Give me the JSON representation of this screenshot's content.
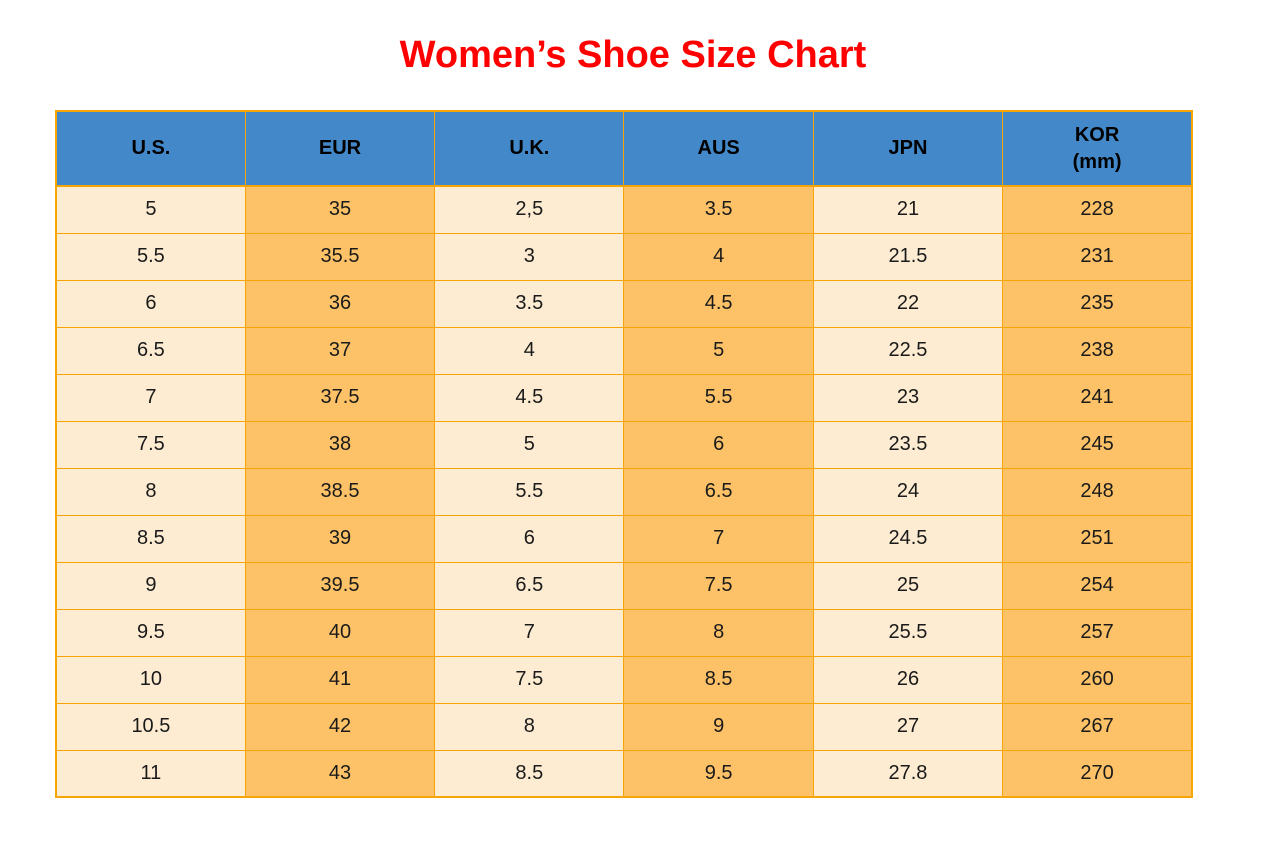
{
  "title": "Women’s Shoe Size Chart",
  "chart_data": {
    "type": "table",
    "title": "Women’s Shoe Size Chart",
    "columns": [
      {
        "key": "us",
        "label": "U.S."
      },
      {
        "key": "eur",
        "label": "EUR"
      },
      {
        "key": "uk",
        "label": "U.K."
      },
      {
        "key": "aus",
        "label": "AUS"
      },
      {
        "key": "jpn",
        "label": "JPN"
      },
      {
        "key": "kor",
        "label": "KOR",
        "sublabel": "(mm)"
      }
    ],
    "rows": [
      [
        "5",
        "35",
        "2,5",
        "3.5",
        "21",
        "228"
      ],
      [
        "5.5",
        "35.5",
        "3",
        "4",
        "21.5",
        "231"
      ],
      [
        "6",
        "36",
        "3.5",
        "4.5",
        "22",
        "235"
      ],
      [
        "6.5",
        "37",
        "4",
        "5",
        "22.5",
        "238"
      ],
      [
        "7",
        "37.5",
        "4.5",
        "5.5",
        "23",
        "241"
      ],
      [
        "7.5",
        "38",
        "5",
        "6",
        "23.5",
        "245"
      ],
      [
        "8",
        "38.5",
        "5.5",
        "6.5",
        "24",
        "248"
      ],
      [
        "8.5",
        "39",
        "6",
        "7",
        "24.5",
        "251"
      ],
      [
        "9",
        "39.5",
        "6.5",
        "7.5",
        "25",
        "254"
      ],
      [
        "9.5",
        "40",
        "7",
        "8",
        "25.5",
        "257"
      ],
      [
        "10",
        "41",
        "7.5",
        "8.5",
        "26",
        "260"
      ],
      [
        "10.5",
        "42",
        "8",
        "9",
        "27",
        "267"
      ],
      [
        "11",
        "43",
        "8.5",
        "9.5",
        "27.8",
        "270"
      ]
    ]
  },
  "colors": {
    "title": "#ff0000",
    "header_bg": "#4389c9",
    "border": "#f6a505",
    "cream_cell": "#fdecd2",
    "orange_cell": "#fdc267",
    "cell_text": "#1a1a1a",
    "header_text": "#000000"
  }
}
